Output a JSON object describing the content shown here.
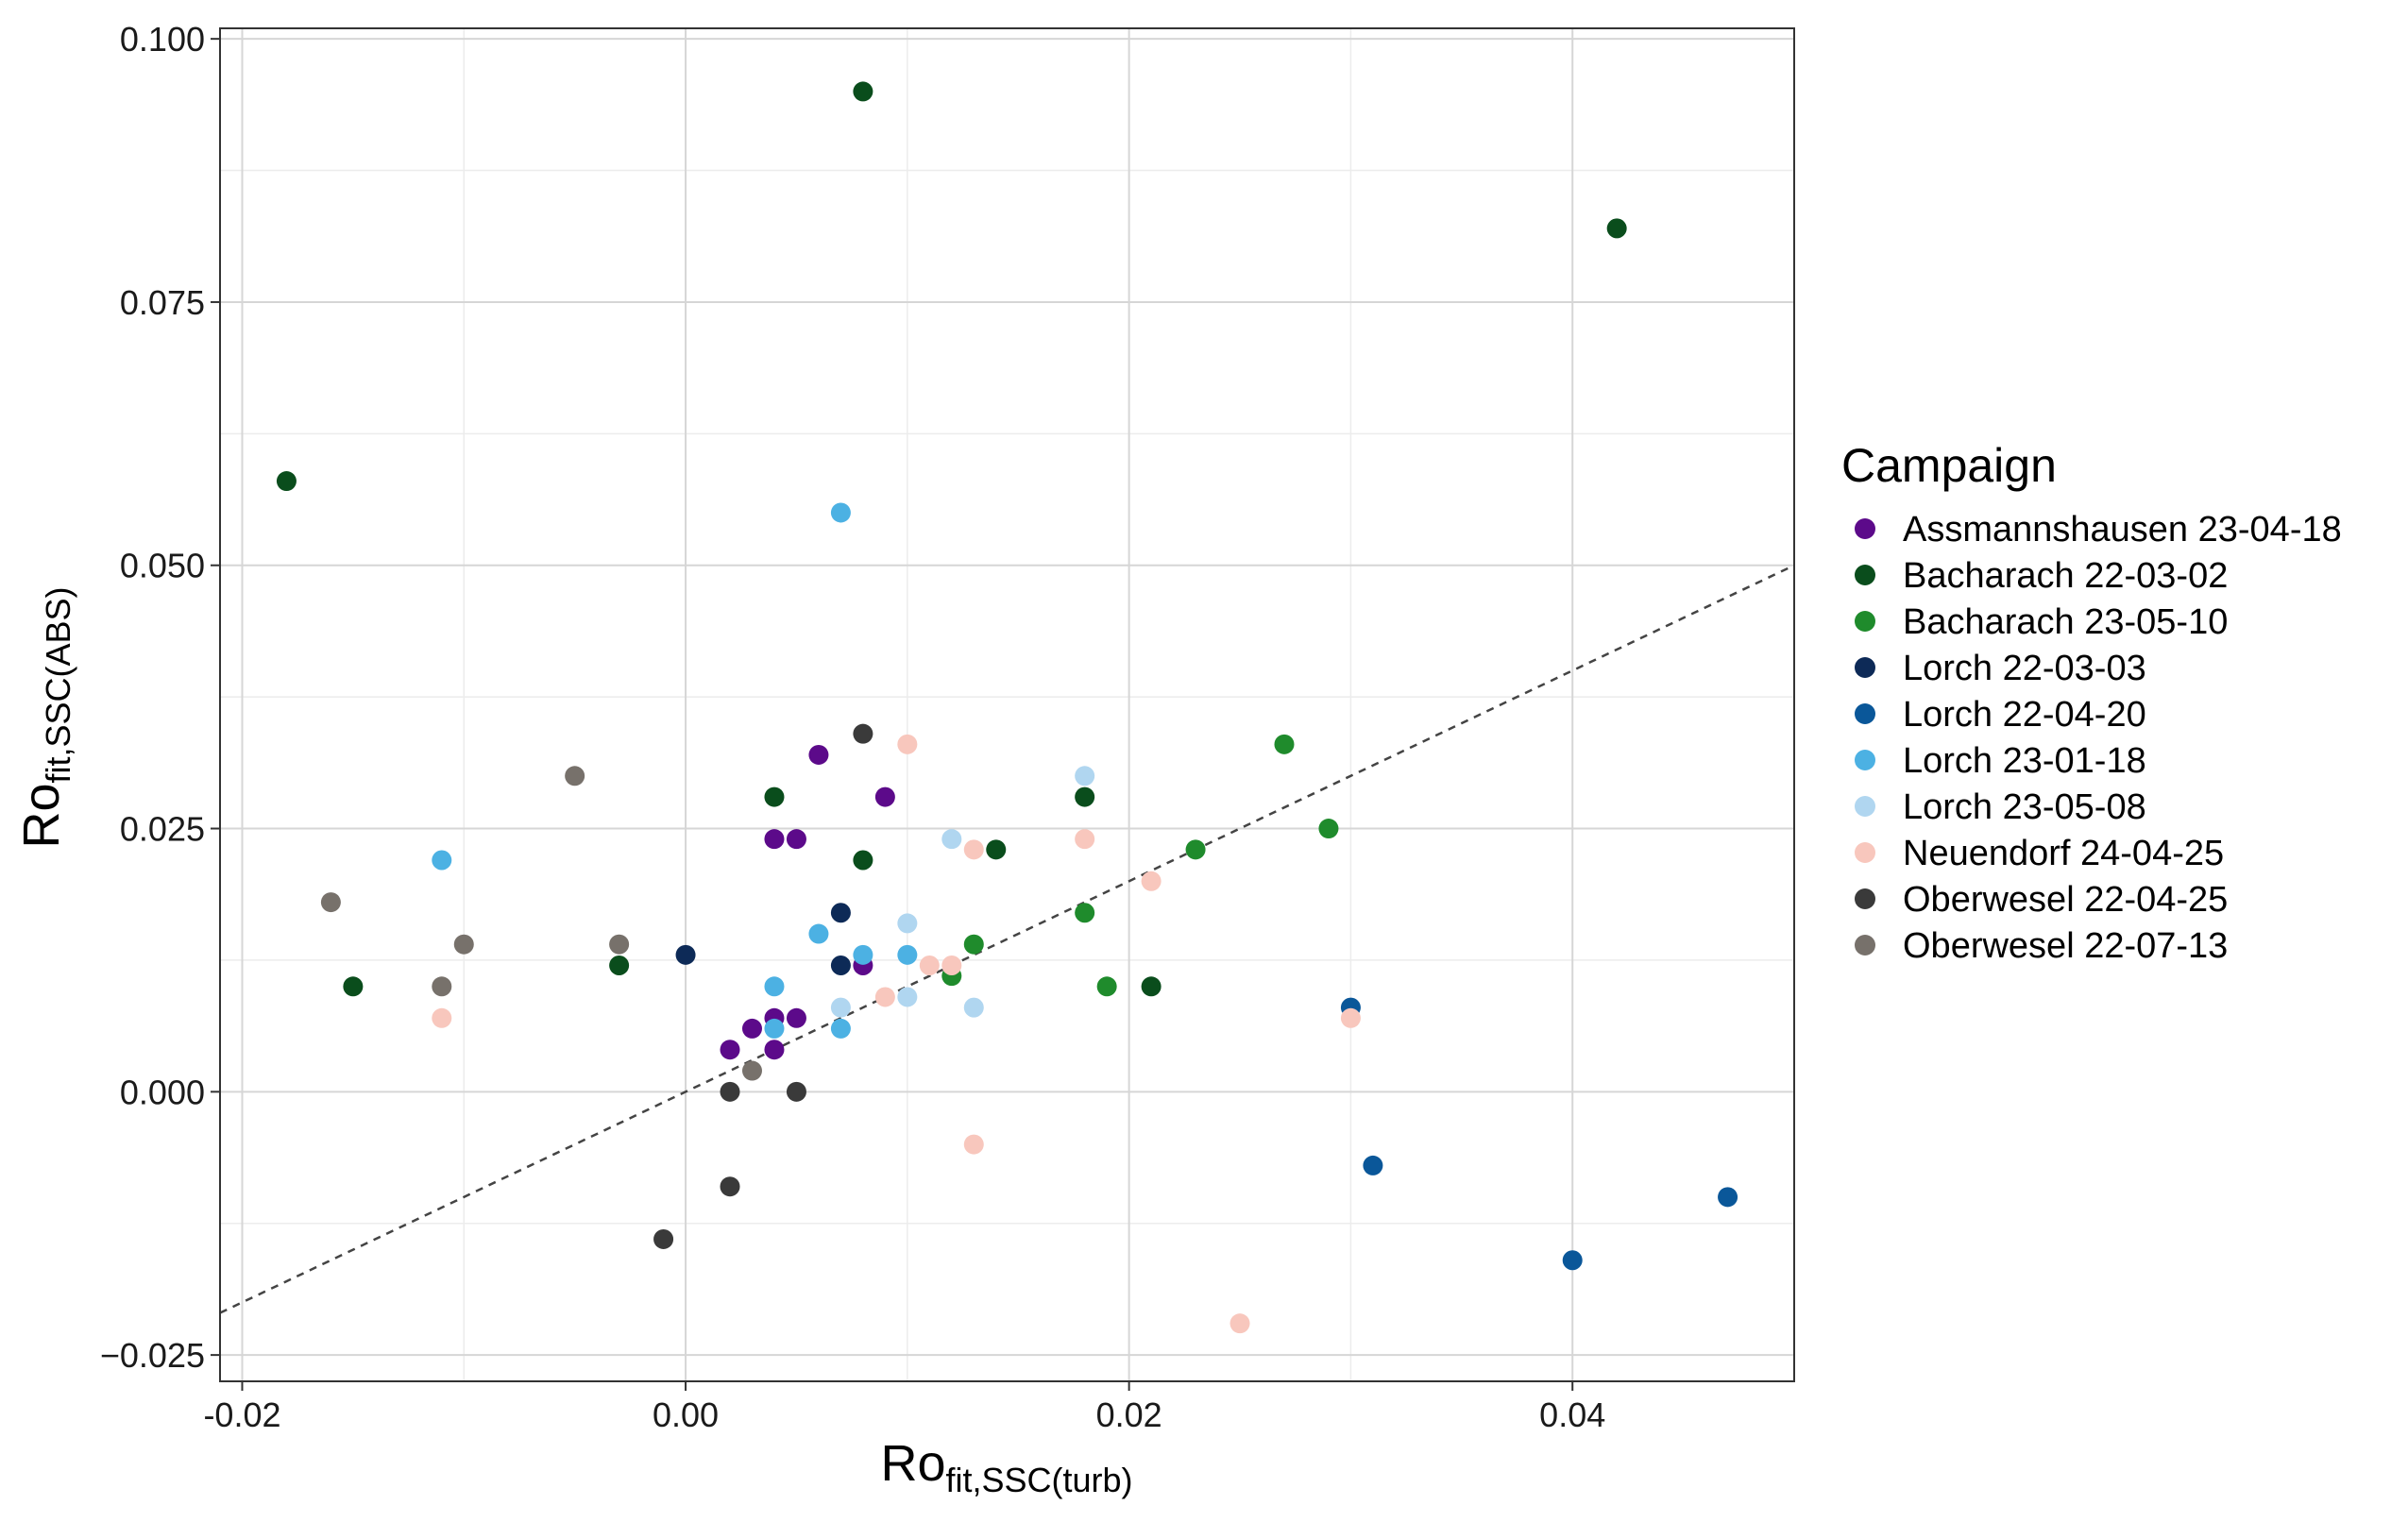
{
  "chart_data": {
    "type": "scatter",
    "title": "",
    "xlabel": {
      "main": "Ro",
      "sub": "fit,SSC(turb)"
    },
    "ylabel": {
      "main": "Ro",
      "sub": "fit,SSC(ABS)"
    },
    "xlim": [
      -0.021,
      0.05
    ],
    "ylim": [
      -0.0275,
      0.101
    ],
    "x_ticks": [
      {
        "value": -0.02,
        "label": "-0.02"
      },
      {
        "value": 0.0,
        "label": "0.00"
      },
      {
        "value": 0.02,
        "label": "0.02"
      },
      {
        "value": 0.04,
        "label": "0.04"
      }
    ],
    "y_ticks": [
      {
        "value": -0.025,
        "label": "−0.025"
      },
      {
        "value": 0.0,
        "label": "0.000"
      },
      {
        "value": 0.025,
        "label": "0.025"
      },
      {
        "value": 0.05,
        "label": "0.050"
      },
      {
        "value": 0.075,
        "label": "0.075"
      },
      {
        "value": 0.1,
        "label": "0.100"
      }
    ],
    "grid": true,
    "reference_line": {
      "type": "identity",
      "style": "dashed"
    },
    "legend": {
      "title": "Campaign",
      "position": "right"
    },
    "series": [
      {
        "name": "Assmannshausen 23-04-18",
        "color": "#5c0a8a",
        "points": [
          [
            0.002,
            0.004
          ],
          [
            0.003,
            0.006
          ],
          [
            0.004,
            0.007
          ],
          [
            0.004,
            0.004
          ],
          [
            0.005,
            0.007
          ],
          [
            0.004,
            0.024
          ],
          [
            0.005,
            0.024
          ],
          [
            0.006,
            0.032
          ],
          [
            0.009,
            0.028
          ],
          [
            0.008,
            0.012
          ]
        ]
      },
      {
        "name": "Bacharach 22-03-02",
        "color": "#0a4d1c",
        "points": [
          [
            0.008,
            0.095
          ],
          [
            0.042,
            0.082
          ],
          [
            -0.018,
            0.058
          ],
          [
            0.004,
            0.028
          ],
          [
            0.008,
            0.022
          ],
          [
            0.014,
            0.023
          ],
          [
            0.018,
            0.028
          ],
          [
            -0.015,
            0.01
          ],
          [
            -0.003,
            0.012
          ],
          [
            0.021,
            0.01
          ]
        ]
      },
      {
        "name": "Bacharach 23-05-10",
        "color": "#1f8b2c",
        "points": [
          [
            0.027,
            0.033
          ],
          [
            0.029,
            0.025
          ],
          [
            0.023,
            0.023
          ],
          [
            0.018,
            0.017
          ],
          [
            0.013,
            0.014
          ],
          [
            0.012,
            0.011
          ],
          [
            0.019,
            0.01
          ]
        ]
      },
      {
        "name": "Lorch 22-03-03",
        "color": "#0d2a57",
        "points": [
          [
            0.0,
            0.013
          ],
          [
            0.007,
            0.017
          ],
          [
            0.007,
            0.012
          ]
        ]
      },
      {
        "name": "Lorch 22-04-20",
        "color": "#0a5799",
        "points": [
          [
            0.03,
            0.008
          ],
          [
            0.031,
            -0.007
          ],
          [
            0.047,
            -0.01
          ],
          [
            0.04,
            -0.016
          ]
        ]
      },
      {
        "name": "Lorch 23-01-18",
        "color": "#4cb1e3",
        "points": [
          [
            0.007,
            0.055
          ],
          [
            -0.011,
            0.022
          ],
          [
            0.006,
            0.015
          ],
          [
            0.008,
            0.013
          ],
          [
            0.004,
            0.01
          ],
          [
            0.01,
            0.013
          ],
          [
            0.004,
            0.006
          ],
          [
            0.007,
            0.006
          ]
        ]
      },
      {
        "name": "Lorch 23-05-08",
        "color": "#b0d6f0",
        "points": [
          [
            0.018,
            0.03
          ],
          [
            0.012,
            0.024
          ],
          [
            0.01,
            0.016
          ],
          [
            0.007,
            0.008
          ],
          [
            0.01,
            0.009
          ],
          [
            0.013,
            0.008
          ]
        ]
      },
      {
        "name": "Neuendorf 24-04-25",
        "color": "#f8c7bd",
        "points": [
          [
            0.01,
            0.033
          ],
          [
            0.013,
            0.023
          ],
          [
            0.018,
            0.024
          ],
          [
            0.021,
            0.02
          ],
          [
            0.011,
            0.012
          ],
          [
            0.012,
            0.012
          ],
          [
            0.009,
            0.009
          ],
          [
            -0.011,
            0.007
          ],
          [
            0.03,
            0.007
          ],
          [
            0.013,
            -0.005
          ],
          [
            0.025,
            -0.022
          ]
        ]
      },
      {
        "name": "Oberwesel 22-04-25",
        "color": "#3a3a3a",
        "points": [
          [
            0.008,
            0.034
          ],
          [
            0.002,
            0.0
          ],
          [
            0.005,
            0.0
          ],
          [
            0.002,
            -0.009
          ],
          [
            -0.001,
            -0.014
          ]
        ]
      },
      {
        "name": "Oberwesel 22-07-13",
        "color": "#77716b",
        "points": [
          [
            -0.005,
            0.03
          ],
          [
            -0.016,
            0.018
          ],
          [
            -0.01,
            0.014
          ],
          [
            -0.003,
            0.014
          ],
          [
            -0.011,
            0.01
          ],
          [
            0.003,
            0.002
          ]
        ]
      }
    ]
  }
}
